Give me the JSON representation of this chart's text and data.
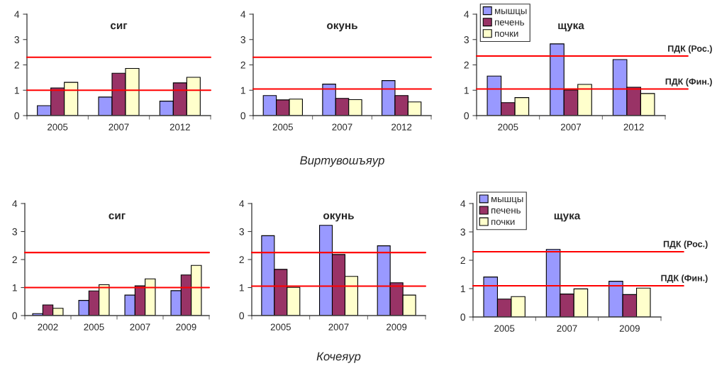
{
  "chart_data": [
    {
      "type": "bar",
      "title": "сиг",
      "categories": [
        "2005",
        "2007",
        "2012"
      ],
      "series": [
        {
          "color": "#9999ff",
          "values": [
            0.39,
            0.73,
            0.57
          ]
        },
        {
          "color": "#993366",
          "values": [
            1.09,
            1.67,
            1.29
          ]
        },
        {
          "color": "#ffffcc",
          "values": [
            1.31,
            1.86,
            1.51
          ]
        }
      ],
      "ylim": [
        0,
        4
      ],
      "yticks": [
        0,
        1,
        2,
        3,
        4
      ],
      "ref_lines": [
        {
          "axis": "y",
          "value": 2.3,
          "color": "#ff0000"
        },
        {
          "axis": "y",
          "value": 1.0,
          "color": "#ff0000"
        }
      ]
    },
    {
      "type": "bar",
      "title": "окунь",
      "xlabel": "Виртувошъяур",
      "categories": [
        "2005",
        "2007",
        "2012"
      ],
      "series": [
        {
          "color": "#9999ff",
          "values": [
            0.79,
            1.24,
            1.38
          ]
        },
        {
          "color": "#993366",
          "values": [
            0.62,
            0.68,
            0.79
          ]
        },
        {
          "color": "#ffffcc",
          "values": [
            0.65,
            0.63,
            0.54
          ]
        }
      ],
      "ylim": [
        0,
        4
      ],
      "yticks": [
        0,
        1,
        2,
        3,
        4
      ],
      "ref_lines": [
        {
          "axis": "y",
          "value": 2.3,
          "color": "#ff0000"
        },
        {
          "axis": "y",
          "value": 1.05,
          "color": "#ff0000"
        }
      ]
    },
    {
      "type": "bar",
      "title": "щука",
      "categories": [
        "2005",
        "2007",
        "2012"
      ],
      "series": [
        {
          "name": "мышцы",
          "color": "#9999ff",
          "values": [
            1.56,
            2.83,
            2.21
          ]
        },
        {
          "name": "печень",
          "color": "#993366",
          "values": [
            0.51,
            1.01,
            1.12
          ]
        },
        {
          "name": "почки",
          "color": "#ffffcc",
          "values": [
            0.71,
            1.23,
            0.87
          ]
        }
      ],
      "ylim": [
        0,
        4
      ],
      "yticks": [
        0,
        1,
        2,
        3,
        4
      ],
      "legend": "top left",
      "ref_lines": [
        {
          "axis": "y",
          "value": 2.35,
          "label": "ПДК (Рос.)",
          "color": "#ff0000"
        },
        {
          "axis": "y",
          "value": 1.05,
          "label": "ПДК (Фин.)",
          "color": "#ff0000"
        }
      ]
    },
    {
      "type": "bar",
      "title": "сиг",
      "categories": [
        "2002",
        "2005",
        "2007",
        "2009"
      ],
      "series": [
        {
          "color": "#9999ff",
          "values": [
            0.07,
            0.54,
            0.73,
            0.89
          ]
        },
        {
          "color": "#993366",
          "values": [
            0.38,
            0.88,
            1.06,
            1.45
          ]
        },
        {
          "color": "#ffffcc",
          "values": [
            0.26,
            1.1,
            1.31,
            1.79
          ]
        }
      ],
      "ylim": [
        0,
        4
      ],
      "yticks": [
        0,
        1,
        2,
        3,
        4
      ],
      "ref_lines": [
        {
          "axis": "y",
          "value": 2.25,
          "color": "#ff0000"
        },
        {
          "axis": "y",
          "value": 1.0,
          "color": "#ff0000"
        }
      ]
    },
    {
      "type": "bar",
      "title": "окунь",
      "xlabel": "Кочеяур",
      "categories": [
        "2005",
        "2007",
        "2009"
      ],
      "series": [
        {
          "color": "#9999ff",
          "values": [
            2.85,
            3.22,
            2.49
          ]
        },
        {
          "color": "#993366",
          "values": [
            1.65,
            2.18,
            1.17
          ]
        },
        {
          "color": "#ffffcc",
          "values": [
            1.01,
            1.4,
            0.73
          ]
        }
      ],
      "ylim": [
        0,
        4
      ],
      "yticks": [
        0,
        1,
        2,
        3,
        4
      ],
      "ref_lines": [
        {
          "axis": "y",
          "value": 2.25,
          "color": "#ff0000"
        },
        {
          "axis": "y",
          "value": 1.05,
          "color": "#ff0000"
        }
      ]
    },
    {
      "type": "bar",
      "title": "щука",
      "categories": [
        "2005",
        "2007",
        "2009"
      ],
      "series": [
        {
          "name": "мышцы",
          "color": "#9999ff",
          "values": [
            1.41,
            2.38,
            1.26
          ]
        },
        {
          "name": "печень",
          "color": "#993366",
          "values": [
            0.63,
            0.81,
            0.79
          ]
        },
        {
          "name": "почки",
          "color": "#ffffcc",
          "values": [
            0.72,
            0.99,
            1.02
          ]
        }
      ],
      "ylim": [
        0,
        4
      ],
      "yticks": [
        0,
        1,
        2,
        3,
        4
      ],
      "legend": "top left",
      "ref_lines": [
        {
          "axis": "y",
          "value": 2.3,
          "label": "ПДК (Рос.)",
          "color": "#ff0000"
        },
        {
          "axis": "y",
          "value": 1.1,
          "label": "ПДК (Фин.)",
          "color": "#ff0000"
        }
      ]
    }
  ]
}
